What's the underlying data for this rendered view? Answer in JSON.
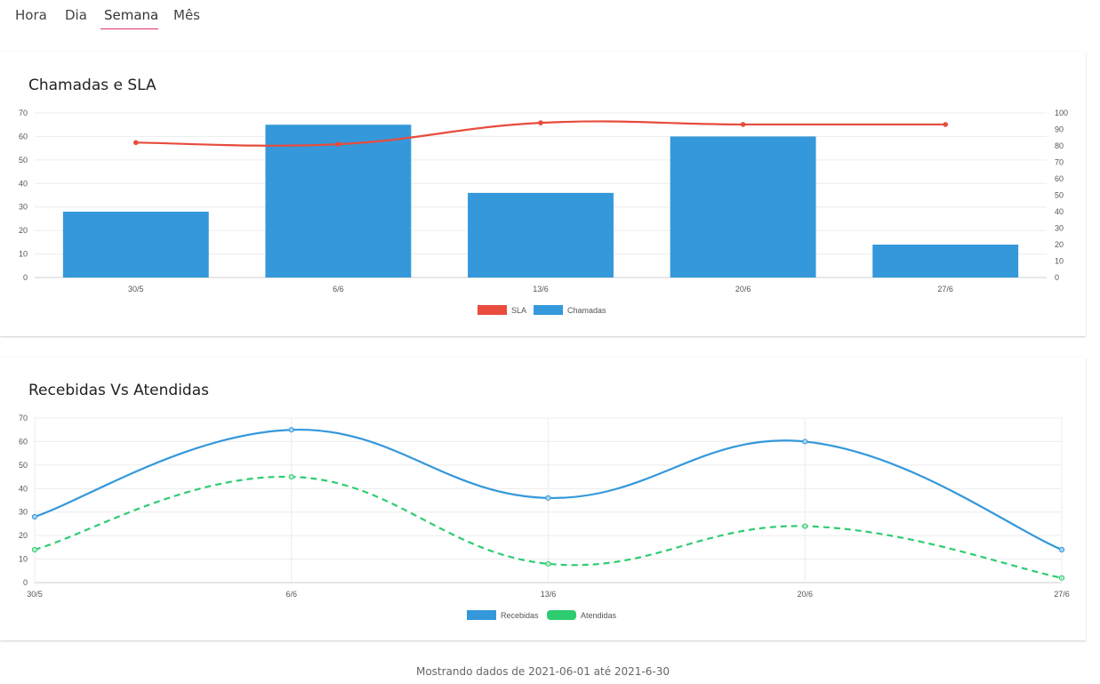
{
  "tabs": [
    {
      "label": "Hora"
    },
    {
      "label": "Dia"
    },
    {
      "label": "Semana"
    },
    {
      "label": "Mês"
    }
  ],
  "active_tab": "Semana",
  "colors": {
    "tab_active_underline": "#e0336a",
    "bar": "#3498db",
    "sla_line": "#e74c3c",
    "recebidas_line": "#3498db",
    "atendidas_line": "#2ecc71",
    "grid": "#ececec"
  },
  "chart_data": [
    {
      "type": "bar",
      "title": "Chamadas e SLA",
      "categories": [
        "30/5",
        "6/6",
        "13/6",
        "20/6",
        "27/6"
      ],
      "series": [
        {
          "name": "Chamadas",
          "type": "bar",
          "axis": "left",
          "values": [
            28,
            65,
            36,
            60,
            14
          ]
        },
        {
          "name": "SLA",
          "type": "line",
          "axis": "right",
          "values": [
            82,
            81,
            94,
            93,
            93
          ]
        }
      ],
      "y_left": {
        "min": 0,
        "max": 70,
        "step": 10
      },
      "y_right": {
        "min": 0,
        "max": 100,
        "step": 10
      },
      "legend": [
        "SLA",
        "Chamadas"
      ],
      "legend_position": "bottom",
      "grid": true
    },
    {
      "type": "line",
      "title": "Recebidas Vs Atendidas",
      "categories": [
        "30/5",
        "6/6",
        "13/6",
        "20/6",
        "27/6"
      ],
      "series": [
        {
          "name": "Recebidas",
          "style": "solid",
          "values": [
            28,
            65,
            36,
            60,
            14
          ]
        },
        {
          "name": "Atendidas",
          "style": "dashed",
          "values": [
            14,
            45,
            8,
            24,
            2
          ]
        }
      ],
      "y": {
        "min": 0,
        "max": 70,
        "step": 10
      },
      "legend": [
        "Recebidas",
        "Atendidas"
      ],
      "legend_position": "bottom",
      "grid": true
    }
  ],
  "footer": {
    "text": "Mostrando dados de 2021-06-01 até 2021-6-30"
  }
}
